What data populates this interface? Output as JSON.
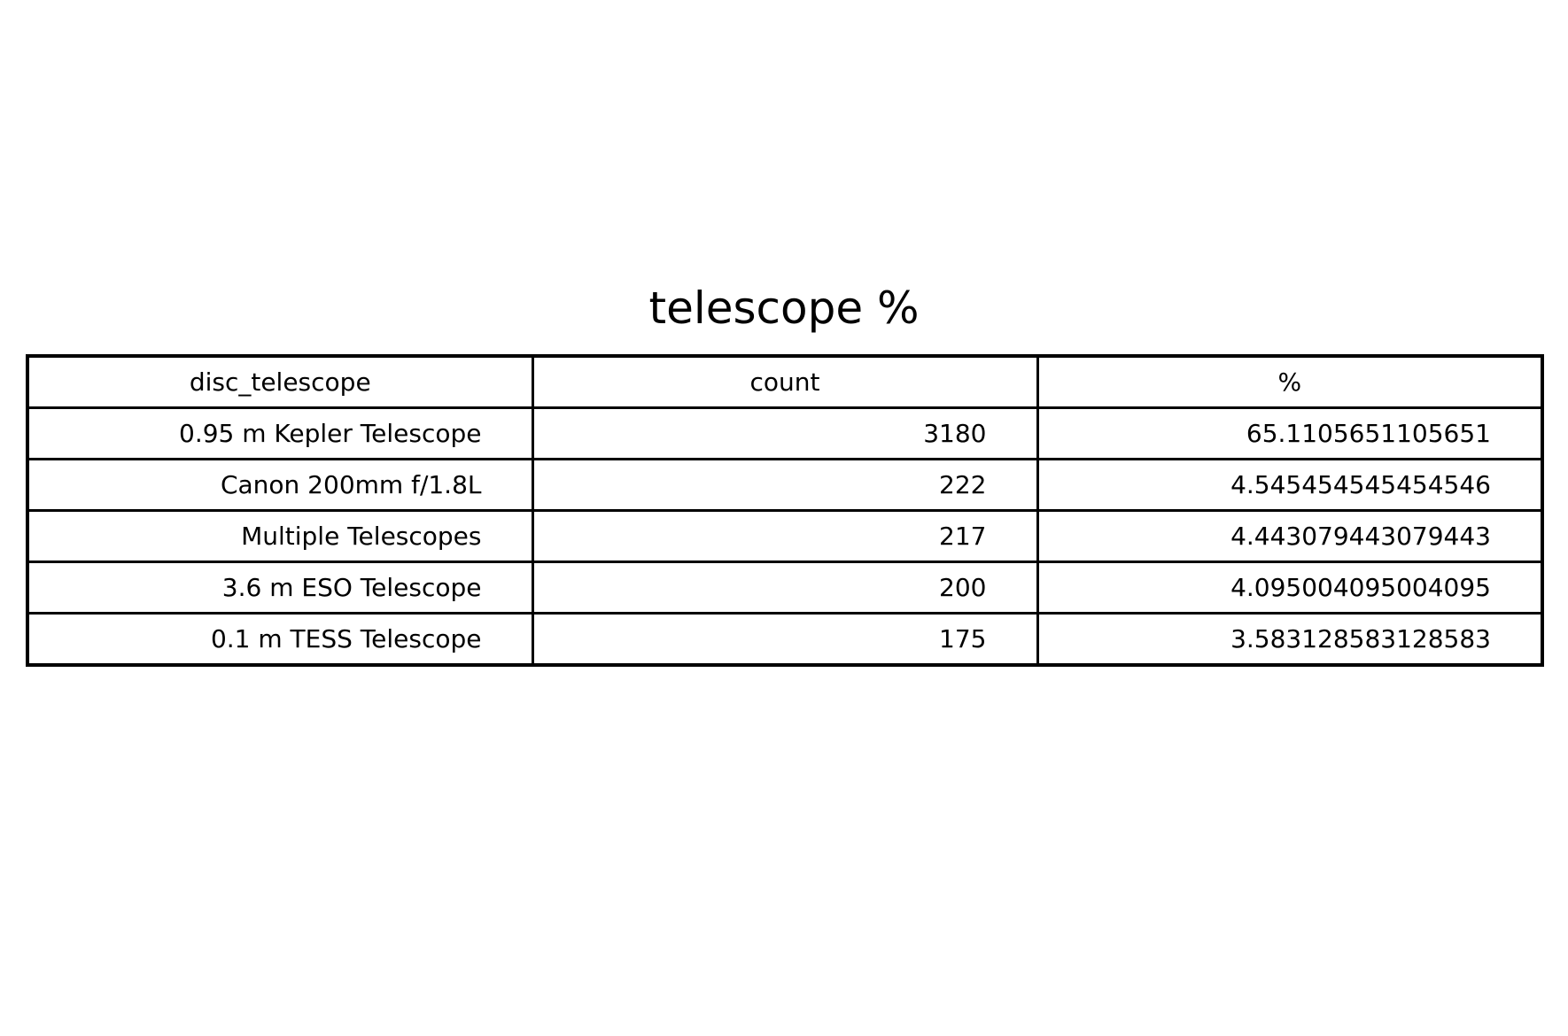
{
  "chart_data": {
    "type": "table",
    "title": "telescope %",
    "columns": [
      "disc_telescope",
      "count",
      "%"
    ],
    "rows": [
      [
        "0.95 m Kepler Telescope",
        "3180",
        "65.1105651105651"
      ],
      [
        "Canon 200mm f/1.8L",
        "222",
        "4.545454545454546"
      ],
      [
        "Multiple Telescopes",
        "217",
        "4.443079443079443"
      ],
      [
        "3.6 m ESO Telescope",
        "200",
        "4.095004095004095"
      ],
      [
        "0.1 m TESS Telescope",
        "175",
        "3.583128583128583"
      ]
    ]
  }
}
